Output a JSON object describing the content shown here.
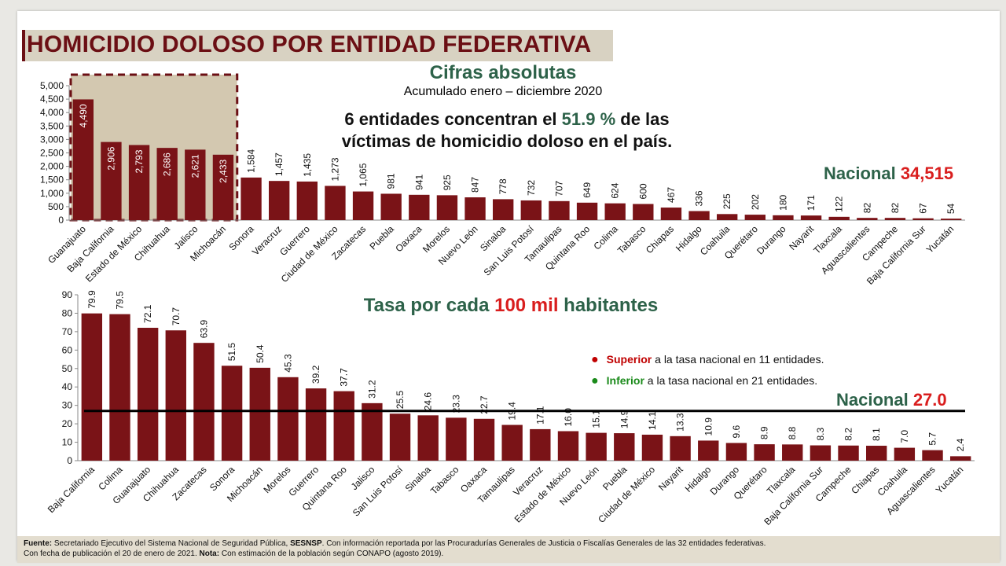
{
  "title": "HOMICIDIO DOLOSO POR ENTIDAD FEDERATIVA",
  "top": {
    "subtitle": "Cifras absolutas",
    "period": "Acumulado enero – diciembre 2020",
    "headline_a": "6 entidades concentran el ",
    "headline_pct": "51.9 %",
    "headline_b": " de las víctimas de homicidio doloso en el país.",
    "nacional_label": "Nacional ",
    "nacional_value": "34,515"
  },
  "bottom": {
    "subtitle_a": "Tasa por cada ",
    "subtitle_b": "100 mil",
    "subtitle_c": " habitantes",
    "note_sup_kw": "Superior",
    "note_sup_text": " a la tasa nacional en 11 entidades.",
    "note_inf_kw": "Inferior",
    "note_inf_text": " a la tasa nacional en 21 entidades.",
    "nacional_label": "Nacional ",
    "nacional_value": "27.0"
  },
  "footer": {
    "fuente_label": "Fuente:",
    "fuente_text": " Secretariado Ejecutivo del Sistema Nacional de Seguridad Pública, ",
    "sesnsp": "SESNSP",
    "fuente_rest": ". Con información reportada por las Procuradurías Generales de Justicia o Fiscalías Generales de las 32 entidades federativas.",
    "line2_a": "Con fecha de publicación el 20 de enero de 2021. ",
    "nota_label": "Nota:",
    "line2_b": " Con estimación de la población según CONAPO (agosto 2019)."
  },
  "colors": {
    "bar": "#7a1317",
    "title": "#6b0f14",
    "green": "#2d6249",
    "red": "#d91e1e",
    "highlight": "#d3c8b0"
  },
  "chart_data": [
    {
      "type": "bar",
      "title": "Cifras absolutas",
      "ylim": [
        0,
        5000
      ],
      "yticks": [
        "0",
        "500",
        "1,000",
        "1,500",
        "2,000",
        "2,500",
        "3,000",
        "3,500",
        "4,000",
        "4,500",
        "5,000"
      ],
      "categories": [
        "Guanajuato",
        "Baja California",
        "Estado de México",
        "Chihuahua",
        "Jalisco",
        "Michoacán",
        "Sonora",
        "Veracruz",
        "Guerrero",
        "Ciudad de México",
        "Zacatecas",
        "Puebla",
        "Oaxaca",
        "Morelos",
        "Nuevo León",
        "Sinaloa",
        "San Luis Potosí",
        "Tamaulipas",
        "Quintana Roo",
        "Colima",
        "Tabasco",
        "Chiapas",
        "Hidalgo",
        "Coahuila",
        "Querétaro",
        "Durango",
        "Nayarit",
        "Tlaxcala",
        "Aguascalientes",
        "Campeche",
        "Baja California Sur",
        "Yucatán"
      ],
      "values": [
        4490,
        2906,
        2793,
        2686,
        2621,
        2433,
        1584,
        1457,
        1435,
        1273,
        1065,
        981,
        941,
        925,
        847,
        778,
        732,
        707,
        649,
        624,
        600,
        467,
        336,
        225,
        202,
        180,
        171,
        122,
        82,
        82,
        67,
        54
      ],
      "labels": [
        "4,490",
        "2,906",
        "2,793",
        "2,686",
        "2,621",
        "2,433",
        "1,584",
        "1,457",
        "1,435",
        "1,273",
        "1,065",
        "981",
        "941",
        "925",
        "847",
        "778",
        "732",
        "707",
        "649",
        "624",
        "600",
        "467",
        "336",
        "225",
        "202",
        "180",
        "171",
        "122",
        "82",
        "82",
        "67",
        "54"
      ],
      "highlight_count": 6,
      "national": 34515
    },
    {
      "type": "bar",
      "title": "Tasa por cada 100 mil habitantes",
      "ylim": [
        0,
        90
      ],
      "yticks": [
        "0",
        "10",
        "20",
        "30",
        "40",
        "50",
        "60",
        "70",
        "80",
        "90"
      ],
      "categories": [
        "Baja California",
        "Colima",
        "Guanajuato",
        "Chihuahua",
        "Zacatecas",
        "Sonora",
        "Michoacán",
        "Morelos",
        "Guerrero",
        "Quintana Roo",
        "Jalisco",
        "San Luis Potosí",
        "Sinaloa",
        "Tabasco",
        "Oaxaca",
        "Tamaulipas",
        "Veracruz",
        "Estado de México",
        "Nuevo León",
        "Puebla",
        "Ciudad de México",
        "Nayarit",
        "Hidalgo",
        "Durango",
        "Querétaro",
        "Tlaxcala",
        "Baja California Sur",
        "Campeche",
        "Chiapas",
        "Coahuila",
        "Aguascalientes",
        "Yucatán"
      ],
      "values": [
        79.9,
        79.5,
        72.1,
        70.7,
        63.9,
        51.5,
        50.4,
        45.3,
        39.2,
        37.7,
        31.2,
        25.5,
        24.6,
        23.3,
        22.7,
        19.4,
        17.1,
        16.0,
        15.1,
        14.9,
        14.1,
        13.3,
        10.9,
        9.6,
        8.9,
        8.8,
        8.3,
        8.2,
        8.1,
        7.0,
        5.7,
        2.4
      ],
      "labels": [
        "79.9",
        "79.5",
        "72.1",
        "70.7",
        "63.9",
        "51.5",
        "50.4",
        "45.3",
        "39.2",
        "37.7",
        "31.2",
        "25.5",
        "24.6",
        "23.3",
        "22.7",
        "19.4",
        "17.1",
        "16.0",
        "15.1",
        "14.9",
        "14.1",
        "13.3",
        "10.9",
        "9.6",
        "8.9",
        "8.8",
        "8.3",
        "8.2",
        "8.1",
        "7.0",
        "5.7",
        "2.4"
      ],
      "national": 27.0
    }
  ]
}
